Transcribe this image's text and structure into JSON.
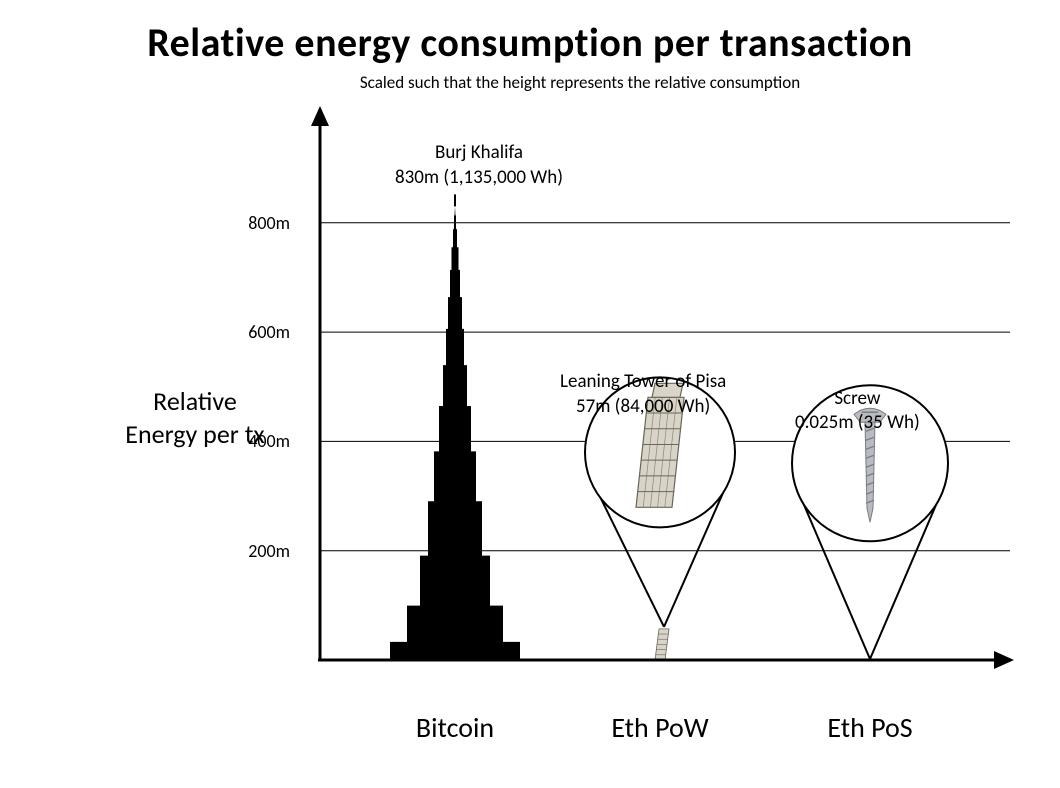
{
  "title": "Relative energy consumption per transaction",
  "subtitle": "Scaled such that the height represents the relative consumption",
  "ylabel_line1": "Relative",
  "ylabel_line2": "Energy per tx",
  "chart": {
    "type": "infographic-bar",
    "background_color": "#ffffff",
    "axis_color": "#000000",
    "axis_width": 2,
    "grid_color": "#000000",
    "grid_width": 1,
    "text_color": "#000000",
    "title_fontsize": 40,
    "subtitle_fontsize": 17,
    "ylabel_fontsize": 26,
    "tick_fontsize": 18,
    "xcat_fontsize": 28,
    "item_label_fontsize": 19,
    "y_max_m": 860,
    "y_ticks_m": [
      200,
      400,
      600,
      800
    ],
    "y_tick_labels": [
      "200m",
      "400m",
      "600m",
      "800m"
    ],
    "categories": [
      {
        "key": "bitcoin",
        "label": "Bitcoin"
      },
      {
        "key": "eth_pow",
        "label": "Eth PoW"
      },
      {
        "key": "eth_pos",
        "label": "Eth PoS"
      }
    ],
    "items": {
      "bitcoin": {
        "object_name": "Burj Khalifa",
        "height_m": 830,
        "energy_wh": 1135000,
        "label_line1": "Burj Khalifa",
        "label_line2": "830m (1,135,000 Wh)",
        "silhouette_color": "#000000"
      },
      "eth_pow": {
        "object_name": "Leaning Tower of Pisa",
        "height_m": 57,
        "energy_wh": 84000,
        "label_line1": "Leaning Tower of Pisa",
        "label_line2": "57m (84,000 Wh)",
        "magnifier_stroke": "#000000",
        "magnifier_stroke_width": 2,
        "tower_fill": "#d9d4c8",
        "tower_stroke": "#6b6659"
      },
      "eth_pos": {
        "object_name": "Screw",
        "height_m": 0.025,
        "energy_wh": 35,
        "label_line1": "Screw",
        "label_line2": "0.025m (35 Wh)",
        "magnifier_stroke": "#000000",
        "magnifier_stroke_width": 2,
        "screw_fill": "#b8bcc0",
        "screw_stroke": "#7a7e82"
      }
    }
  }
}
